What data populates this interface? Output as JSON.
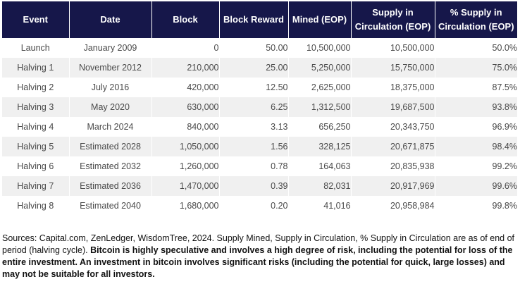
{
  "table": {
    "headers": [
      "Event",
      "Date",
      "Block",
      "Block Reward",
      "Mined (EOP)",
      "Supply in Circulation (EOP)",
      "% Supply in Circulation (EOP)"
    ],
    "rows": [
      [
        "Launch",
        "January 2009",
        "0",
        "50.00",
        "10,500,000",
        "10,500,000",
        "50.0%"
      ],
      [
        "Halving 1",
        "November 2012",
        "210,000",
        "25.00",
        "5,250,000",
        "15,750,000",
        "75.0%"
      ],
      [
        "Halving 2",
        "July 2016",
        "420,000",
        "12.50",
        "2,625,000",
        "18,375,000",
        "87.5%"
      ],
      [
        "Halving 3",
        "May 2020",
        "630,000",
        "6.25",
        "1,312,500",
        "19,687,500",
        "93.8%"
      ],
      [
        "Halving 4",
        "March 2024",
        "840,000",
        "3.13",
        "656,250",
        "20,343,750",
        "96.9%"
      ],
      [
        "Halving 5",
        "Estimated 2028",
        "1,050,000",
        "1.56",
        "328,125",
        "20,671,875",
        "98.4%"
      ],
      [
        "Halving 6",
        "Estimated 2032",
        "1,260,000",
        "0.78",
        "164,063",
        "20,835,938",
        "99.2%"
      ],
      [
        "Halving 7",
        "Estimated 2036",
        "1,470,000",
        "0.39",
        "82,031",
        "20,917,969",
        "99.6%"
      ],
      [
        "Halving 8",
        "Estimated 2040",
        "1,680,000",
        "0.20",
        "41,016",
        "20,958,984",
        "99.8%"
      ]
    ]
  },
  "footnote": {
    "sources": "Sources: Capital.com, ZenLedger, WisdomTree, 2024. Supply Mined, Supply in Circulation, % Supply in Circulation are as of end of period (halving cycle).",
    "disclaimer": "Bitcoin is highly speculative and involves a high degree of risk, including the potential for loss of the entire investment. An investment in bitcoin involves significant risks (including the potential for quick, large losses) and may not be suitable for all investors."
  }
}
